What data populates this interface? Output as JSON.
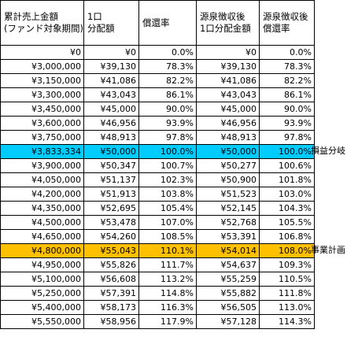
{
  "headers": [
    [
      "累計売上金額",
      "(ファンド対象期間)"
    ],
    [
      "1口",
      "分配額"
    ],
    [
      "償還率",
      ""
    ],
    [
      "源泉徴収後",
      "1口分配金額"
    ],
    [
      "源泉徴収後",
      "償還率"
    ]
  ],
  "rows": [
    {
      "sales": "¥0",
      "dist": "¥0",
      "rate": "0.0%",
      "net_dist": "¥0",
      "net_rate": "0.0%",
      "highlight": ""
    },
    {
      "sales": "¥3,000,000",
      "dist": "¥39,130",
      "rate": "78.3%",
      "net_dist": "¥39,130",
      "net_rate": "78.3%",
      "highlight": ""
    },
    {
      "sales": "¥3,150,000",
      "dist": "¥41,086",
      "rate": "82.2%",
      "net_dist": "¥41,086",
      "net_rate": "82.2%",
      "highlight": ""
    },
    {
      "sales": "¥3,300,000",
      "dist": "¥43,043",
      "rate": "86.1%",
      "net_dist": "¥43,043",
      "net_rate": "86.1%",
      "highlight": ""
    },
    {
      "sales": "¥3,450,000",
      "dist": "¥45,000",
      "rate": "90.0%",
      "net_dist": "¥45,000",
      "net_rate": "90.0%",
      "highlight": ""
    },
    {
      "sales": "¥3,600,000",
      "dist": "¥46,956",
      "rate": "93.9%",
      "net_dist": "¥46,956",
      "net_rate": "93.9%",
      "highlight": ""
    },
    {
      "sales": "¥3,750,000",
      "dist": "¥48,913",
      "rate": "97.8%",
      "net_dist": "¥48,913",
      "net_rate": "97.8%",
      "highlight": ""
    },
    {
      "sales": "¥3,833,334",
      "dist": "¥50,000",
      "rate": "100.0%",
      "net_dist": "¥50,000",
      "net_rate": "100.0%",
      "highlight": "blue",
      "note": "損益分岐"
    },
    {
      "sales": "¥3,900,000",
      "dist": "¥50,347",
      "rate": "100.7%",
      "net_dist": "¥50,277",
      "net_rate": "100.6%",
      "highlight": ""
    },
    {
      "sales": "¥4,050,000",
      "dist": "¥51,137",
      "rate": "102.3%",
      "net_dist": "¥50,900",
      "net_rate": "101.8%",
      "highlight": ""
    },
    {
      "sales": "¥4,200,000",
      "dist": "¥51,913",
      "rate": "103.8%",
      "net_dist": "¥51,523",
      "net_rate": "103.0%",
      "highlight": ""
    },
    {
      "sales": "¥4,350,000",
      "dist": "¥52,695",
      "rate": "105.4%",
      "net_dist": "¥52,145",
      "net_rate": "104.3%",
      "highlight": ""
    },
    {
      "sales": "¥4,500,000",
      "dist": "¥53,478",
      "rate": "107.0%",
      "net_dist": "¥52,768",
      "net_rate": "105.5%",
      "highlight": ""
    },
    {
      "sales": "¥4,650,000",
      "dist": "¥54,260",
      "rate": "108.5%",
      "net_dist": "¥53,391",
      "net_rate": "106.8%",
      "highlight": ""
    },
    {
      "sales": "¥4,800,000",
      "dist": "¥55,043",
      "rate": "110.1%",
      "net_dist": "¥54,014",
      "net_rate": "108.0%",
      "highlight": "gold",
      "note": "事業計画"
    },
    {
      "sales": "¥4,950,000",
      "dist": "¥55,826",
      "rate": "111.7%",
      "net_dist": "¥54,637",
      "net_rate": "109.3%",
      "highlight": ""
    },
    {
      "sales": "¥5,100,000",
      "dist": "¥56,608",
      "rate": "113.2%",
      "net_dist": "¥55,259",
      "net_rate": "110.5%",
      "highlight": ""
    },
    {
      "sales": "¥5,250,000",
      "dist": "¥57,391",
      "rate": "114.8%",
      "net_dist": "¥55,882",
      "net_rate": "111.8%",
      "highlight": ""
    },
    {
      "sales": "¥5,400,000",
      "dist": "¥58,173",
      "rate": "116.3%",
      "net_dist": "¥56,505",
      "net_rate": "113.0%",
      "highlight": ""
    },
    {
      "sales": "¥5,550,000",
      "dist": "¥58,956",
      "rate": "117.9%",
      "net_dist": "¥57,128",
      "net_rate": "114.3%",
      "highlight": ""
    }
  ],
  "colors": {
    "breakeven_highlight": "#00ccff",
    "plan_highlight": "#ffc000"
  }
}
